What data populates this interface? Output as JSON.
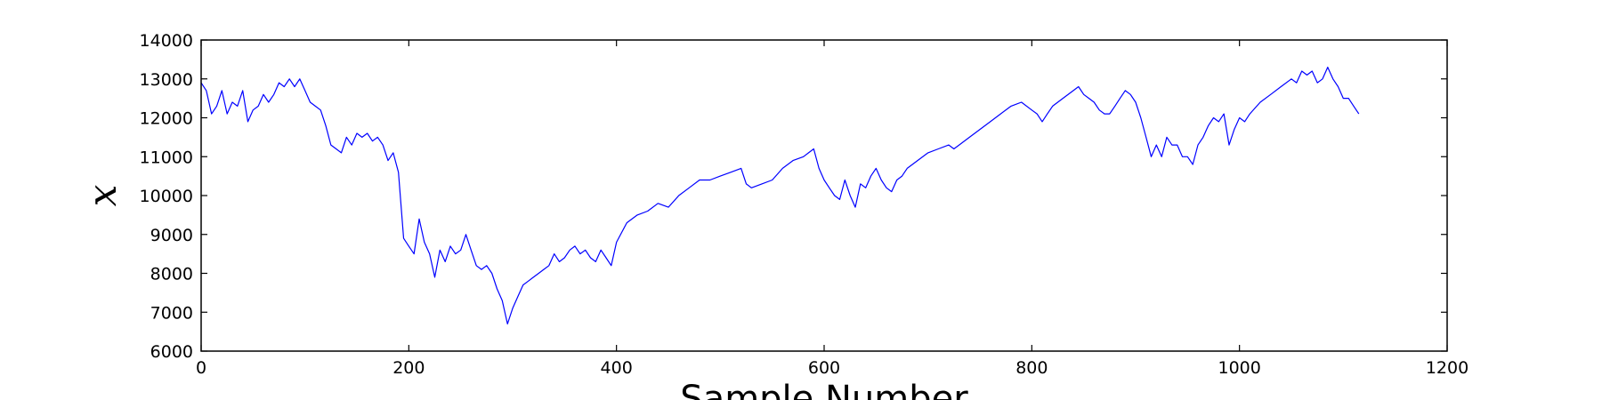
{
  "chart_data": {
    "type": "line",
    "title": "",
    "xlabel": "Sample Number",
    "ylabel": "x",
    "xlim": [
      0,
      1200
    ],
    "ylim": [
      6000,
      14000
    ],
    "xticks": [
      0,
      200,
      400,
      600,
      800,
      1000,
      1200
    ],
    "yticks": [
      6000,
      7000,
      8000,
      9000,
      10000,
      11000,
      12000,
      13000,
      14000
    ],
    "grid": false,
    "legend": "none",
    "line_color": "#0000ff",
    "series": [
      {
        "x": [
          0,
          5,
          10,
          15,
          20,
          25,
          30,
          35,
          40,
          45,
          50,
          55,
          60,
          65,
          70,
          75,
          80,
          85,
          90,
          95,
          100,
          105,
          110,
          115,
          120,
          125,
          130,
          135,
          140,
          145,
          150,
          155,
          160,
          165,
          170,
          175,
          180,
          185,
          190,
          195,
          200,
          205,
          210,
          215,
          220,
          225,
          230,
          235,
          240,
          245,
          250,
          255,
          260,
          265,
          270,
          275,
          280,
          285,
          290,
          295,
          300,
          305,
          310,
          315,
          320,
          325,
          330,
          335,
          340,
          345,
          350,
          355,
          360,
          365,
          370,
          375,
          380,
          385,
          390,
          395,
          400,
          410,
          420,
          430,
          440,
          450,
          460,
          470,
          480,
          490,
          500,
          510,
          520,
          525,
          530,
          540,
          550,
          560,
          570,
          580,
          585,
          590,
          595,
          600,
          605,
          610,
          615,
          620,
          625,
          630,
          635,
          640,
          645,
          650,
          655,
          660,
          665,
          670,
          675,
          680,
          690,
          700,
          710,
          720,
          725,
          730,
          740,
          750,
          760,
          770,
          780,
          790,
          800,
          805,
          810,
          815,
          820,
          830,
          840,
          845,
          850,
          855,
          860,
          865,
          870,
          875,
          880,
          885,
          890,
          895,
          900,
          905,
          910,
          915,
          920,
          925,
          930,
          935,
          940,
          945,
          950,
          955,
          960,
          965,
          970,
          975,
          980,
          985,
          990,
          995,
          1000,
          1005,
          1010,
          1020,
          1030,
          1040,
          1050,
          1055,
          1060,
          1065,
          1070,
          1075,
          1080,
          1085,
          1090,
          1095,
          1100,
          1105,
          1110,
          1115
        ],
        "values": [
          12900,
          12700,
          12100,
          12300,
          12700,
          12100,
          12400,
          12300,
          12700,
          11900,
          12200,
          12300,
          12600,
          12400,
          12600,
          12900,
          12800,
          13000,
          12800,
          13000,
          12700,
          12400,
          12300,
          12200,
          11800,
          11300,
          11200,
          11100,
          11500,
          11300,
          11600,
          11500,
          11600,
          11400,
          11500,
          11300,
          10900,
          11100,
          10600,
          8900,
          8700,
          8500,
          9400,
          8800,
          8500,
          7900,
          8600,
          8300,
          8700,
          8500,
          8600,
          9000,
          8600,
          8200,
          8100,
          8200,
          8000,
          7600,
          7300,
          6700,
          7100,
          7400,
          7700,
          7800,
          7900,
          8000,
          8100,
          8200,
          8500,
          8300,
          8400,
          8600,
          8700,
          8500,
          8600,
          8400,
          8300,
          8600,
          8400,
          8200,
          8800,
          9300,
          9500,
          9600,
          9800,
          9700,
          10000,
          10200,
          10400,
          10400,
          10500,
          10600,
          10700,
          10300,
          10200,
          10300,
          10400,
          10700,
          10900,
          11000,
          11100,
          11200,
          10700,
          10400,
          10200,
          10000,
          9900,
          10400,
          10000,
          9700,
          10300,
          10200,
          10500,
          10700,
          10400,
          10200,
          10100,
          10400,
          10500,
          10700,
          10900,
          11100,
          11200,
          11300,
          11200,
          11300,
          11500,
          11700,
          11900,
          12100,
          12300,
          12400,
          12200,
          12100,
          11900,
          12100,
          12300,
          12500,
          12700,
          12800,
          12600,
          12500,
          12400,
          12200,
          12100,
          12100,
          12300,
          12500,
          12700,
          12600,
          12400,
          12000,
          11500,
          11000,
          11300,
          11000,
          11500,
          11300,
          11300,
          11000,
          11000,
          10800,
          11300,
          11500,
          11800,
          12000,
          11900,
          12100,
          11300,
          11700,
          12000,
          11900,
          12100,
          12400,
          12600,
          12800,
          13000,
          12900,
          13200,
          13100,
          13200,
          12900,
          13000,
          13300,
          13000,
          12800,
          12500,
          12500,
          12300,
          12100
        ]
      }
    ]
  }
}
